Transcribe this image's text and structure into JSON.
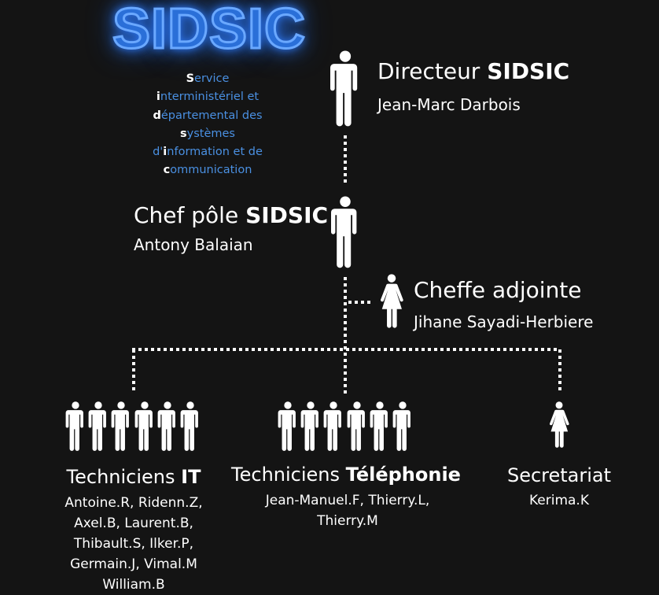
{
  "logo": {
    "text": "SIDSIC"
  },
  "acronym": {
    "lines": [
      {
        "initial": "S",
        "rest": "ervice"
      },
      {
        "initial": "i",
        "rest": "nterministériel et"
      },
      {
        "initial": "d",
        "rest": "épartemental des"
      },
      {
        "initial": "s",
        "rest": "ystèmes"
      },
      {
        "prefix": "d'",
        "initial": "i",
        "rest": "nformation et de"
      },
      {
        "initial": "c",
        "rest": "ommunication"
      }
    ]
  },
  "director": {
    "title": "Directeur ",
    "title_bold": "SIDSIC",
    "name": "Jean-Marc Darbois"
  },
  "chef": {
    "title": "Chef pôle ",
    "title_bold": "SIDSIC",
    "name": "Antony Balaian"
  },
  "adjointe": {
    "title": "Cheffe adjointe",
    "name": "Jihane Sayadi-Herbiere"
  },
  "teams": {
    "it": {
      "title": "Techniciens ",
      "title_bold": "IT",
      "members": [
        "Antoine.R, Ridenn.Z,",
        "Axel.B, Laurent.B,",
        "Thibault.S, Ilker.P,",
        "Germain.J, Vimal.M",
        "William.B"
      ]
    },
    "tel": {
      "title": "Techniciens ",
      "title_bold": "Téléphonie",
      "members": [
        "Jean-Manuel.F, Thierry.L,",
        "Thierry.M"
      ]
    },
    "sec": {
      "title": "Secretariat",
      "members": [
        "Kerima.K"
      ]
    }
  },
  "colors": {
    "background": "#141414",
    "accent": "#4a90e2",
    "logo_glow": "#2f7cff",
    "text": "#ffffff"
  },
  "icons": {
    "male": "man-icon",
    "female": "woman-icon"
  }
}
